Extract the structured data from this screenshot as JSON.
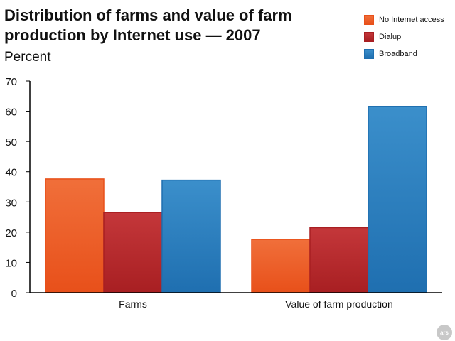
{
  "chart_data": {
    "type": "bar",
    "title": "Distribution of farms and value of farm production by Internet use — 2007",
    "subtitle": "Percent",
    "categories": [
      "Farms",
      "Value of farm production"
    ],
    "series": [
      {
        "name": "No Internet access",
        "values": [
          37.6,
          17.6
        ],
        "color": "#f06f3a",
        "color_dark": "#e8501a"
      },
      {
        "name": "Dialup",
        "values": [
          26.5,
          21.5
        ],
        "color": "#c4373a",
        "color_dark": "#a81f22"
      },
      {
        "name": "Broadband",
        "values": [
          37.2,
          61.6
        ],
        "color": "#3b8fcb",
        "color_dark": "#1f6fb0"
      }
    ],
    "ylim": [
      0,
      70
    ],
    "yticks": [
      0,
      10,
      20,
      30,
      40,
      50,
      60,
      70
    ],
    "legend_position": "top-right",
    "grid": false
  },
  "watermark": "ars"
}
